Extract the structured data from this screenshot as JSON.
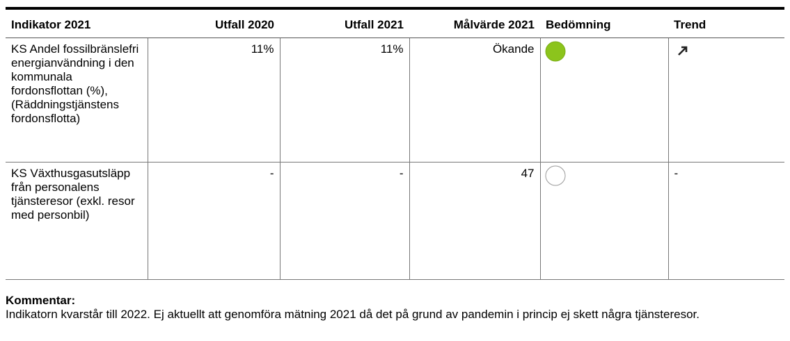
{
  "table": {
    "header": [
      "Indikator 2021",
      "Utfall 2020",
      "Utfall 2021",
      "Målvärde 2021",
      "Bedömning",
      "Trend"
    ],
    "rows": [
      {
        "indicator": "KS Andel fossilbränslefri energianvändning i den kommunala fordonsflottan (%), (Räddningstjänstens fordonsflotta)",
        "utfall_2020": "11%",
        "utfall_2021": "11%",
        "malvarde_2021": "Ökande"
      },
      {
        "indicator": "KS Växthusgasutsläpp från personalens tjänsteresor (exkl. resor med personbil)",
        "utfall_2020": "-",
        "utfall_2021": "-",
        "malvarde_2021": "47",
        "trend": "-"
      }
    ]
  },
  "comment": {
    "label": "Kommentar:",
    "text": "Indikatorn kvarstår till 2022. Ej aktuellt att genomföra mätning 2021 då det på grund av pandemin i princip ej skett några tjänsteresor."
  }
}
